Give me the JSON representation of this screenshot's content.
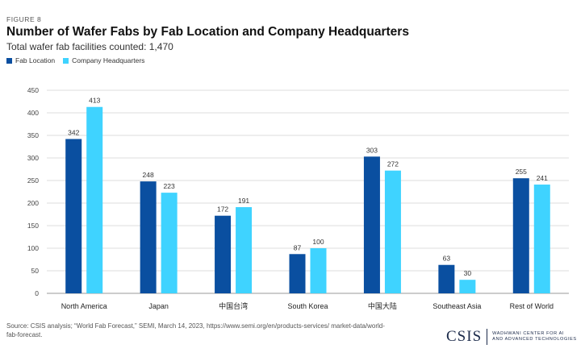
{
  "figure_label": "FIGURE 8",
  "colors": {
    "fab_location": "#0a4fa0",
    "company_hq": "#3fd3ff",
    "grid": "#dddddd",
    "axis": "#999999"
  },
  "chart_data": {
    "type": "bar",
    "title": "Number of Wafer Fabs by Fab Location and Company Headquarters",
    "subtitle": "Total wafer fab facilities counted: 1,470",
    "categories": [
      "North America",
      "Japan",
      "中国台湾",
      "South Korea",
      "中国大陆",
      "Southeast Asia",
      "Rest of World"
    ],
    "series": [
      {
        "name": "Fab Location",
        "values": [
          342,
          248,
          172,
          87,
          303,
          63,
          255
        ]
      },
      {
        "name": "Company Headquarters",
        "values": [
          413,
          223,
          191,
          100,
          272,
          30,
          241
        ]
      }
    ],
    "ylim": [
      0,
      450
    ],
    "yticks": [
      0,
      50,
      100,
      150,
      200,
      250,
      300,
      350,
      400,
      450
    ],
    "grid": true,
    "legend_position": "top-left",
    "xlabel": "",
    "ylabel": ""
  },
  "source": "Source: CSIS analysis; “World Fab Forecast,” SEMI, March 14, 2023, https://www.semi.org/en/products-services/ market-data/world-fab-forecast.",
  "logo": {
    "name": "CSIS",
    "center_line1": "WADHWANI CENTER FOR AI",
    "center_line2": "AND ADVANCED TECHNOLOGIES"
  }
}
